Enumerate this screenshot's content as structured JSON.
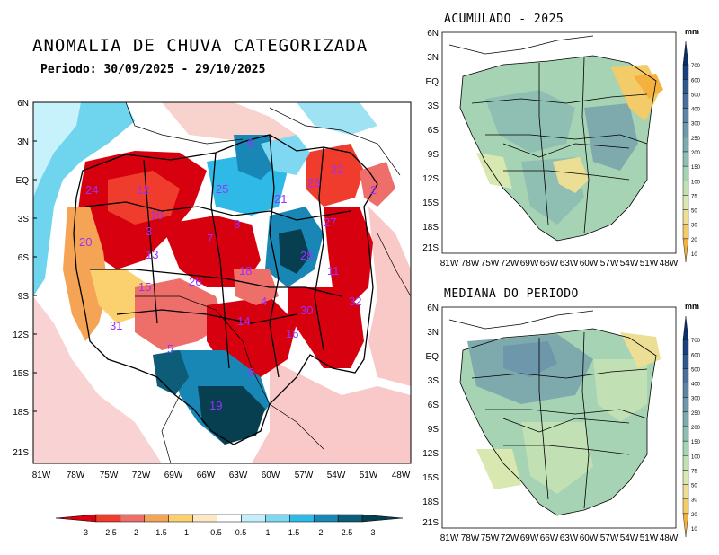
{
  "main_map": {
    "title": "ANOMALIA DE CHUVA CATEGORIZADA",
    "period_label": "Periodo: 30/09/2025 - 29/10/2025",
    "lat_ticks": [
      "6N",
      "3N",
      "EQ",
      "3S",
      "6S",
      "9S",
      "12S",
      "15S",
      "18S",
      "21S"
    ],
    "lon_ticks": [
      "81W",
      "78W",
      "75W",
      "72W",
      "69W",
      "66W",
      "63W",
      "60W",
      "57W",
      "54W",
      "51W",
      "48W"
    ],
    "basin_labels": [
      "24",
      "12",
      "25",
      "6",
      "21",
      "23",
      "22",
      "2",
      "20",
      "10",
      "3",
      "13",
      "7",
      "8",
      "27",
      "28",
      "11",
      "15",
      "26",
      "18",
      "4",
      "32",
      "31",
      "14",
      "30",
      "16",
      "5",
      "9",
      "19"
    ]
  },
  "colorbar": {
    "ticks": [
      "-3",
      "-2.5",
      "-2",
      "-1.5",
      "-1",
      "-0.5",
      "0.5",
      "1",
      "1.5",
      "2",
      "2.5",
      "3"
    ],
    "colors": [
      "#d7000f",
      "#ef3c2d",
      "#ee6f6a",
      "#f5a455",
      "#fbd06e",
      "#fde8c3",
      "#ffffff",
      "#c2effa",
      "#7ed8f2",
      "#2fb9e6",
      "#1987b5",
      "#0d5c78",
      "#073f50"
    ]
  },
  "accumulated_map": {
    "title": "ACUMULADO - 2025",
    "unit": "mm"
  },
  "median_map": {
    "title": "MEDIANA DO PERIODO",
    "unit": "mm"
  },
  "mini_lat_ticks": [
    "6N",
    "3N",
    "EQ",
    "3S",
    "6S",
    "9S",
    "12S",
    "15S",
    "18S",
    "21S"
  ],
  "mini_lon_ticks": [
    "81W",
    "78W",
    "75W",
    "72W",
    "69W",
    "66W",
    "63W",
    "60W",
    "57W",
    "54W",
    "51W",
    "48W"
  ],
  "mm_scale": {
    "ticks": [
      "700",
      "600",
      "500",
      "400",
      "300",
      "250",
      "200",
      "150",
      "100",
      "75",
      "50",
      "30",
      "20",
      "10"
    ],
    "colors": [
      "#0b2f6b",
      "#17427f",
      "#2f5a8e",
      "#4a6f9c",
      "#5e84a6",
      "#6e97ab",
      "#7eaaae",
      "#8ebfb2",
      "#a6d3b4",
      "#c1e0b3",
      "#d9e7b0",
      "#ecdf95",
      "#f3cc69",
      "#f5b13f"
    ]
  }
}
